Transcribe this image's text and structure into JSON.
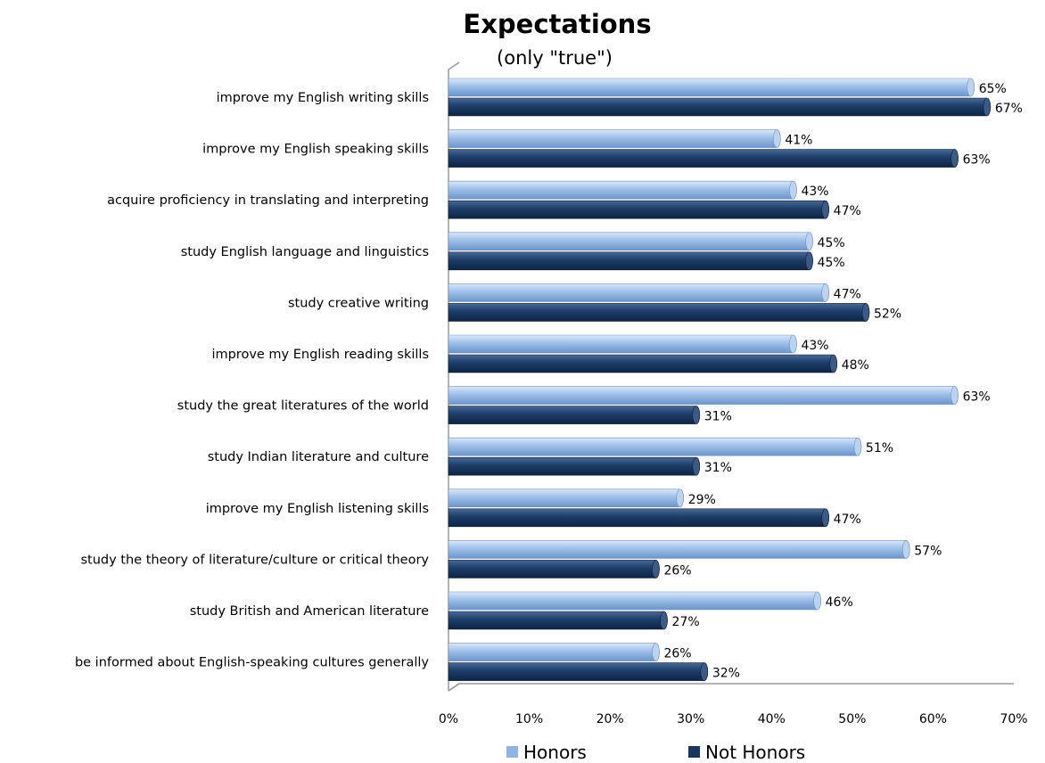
{
  "chart_data": {
    "type": "bar",
    "orientation": "horizontal",
    "title": "Expectations",
    "subtitle": "(only \"true\")",
    "categories": [
      "improve my English writing skills",
      "improve my English speaking skills",
      "acquire proficiency in translating and interpreting",
      "study English language and linguistics",
      "study creative writing",
      "improve my English reading skills",
      "study the great literatures of the world",
      "study Indian literature and culture",
      "improve my English listening skills",
      "study the theory of literature/culture or critical theory",
      "study British and American literature",
      "be informed about English-speaking cultures generally"
    ],
    "series": [
      {
        "name": "Honors",
        "values": [
          65,
          41,
          43,
          45,
          47,
          43,
          63,
          51,
          29,
          57,
          46,
          26
        ],
        "color": "#8fb4e3"
      },
      {
        "name": "Not Honors",
        "values": [
          67,
          63,
          47,
          45,
          52,
          48,
          31,
          31,
          47,
          26,
          27,
          32
        ],
        "color": "#17375e"
      }
    ],
    "value_suffix": "%",
    "xlim": [
      0,
      70
    ],
    "xticks": [
      "0%",
      "10%",
      "20%",
      "30%",
      "40%",
      "50%",
      "60%",
      "70%"
    ],
    "grid": false,
    "legend_position": "bottom"
  }
}
